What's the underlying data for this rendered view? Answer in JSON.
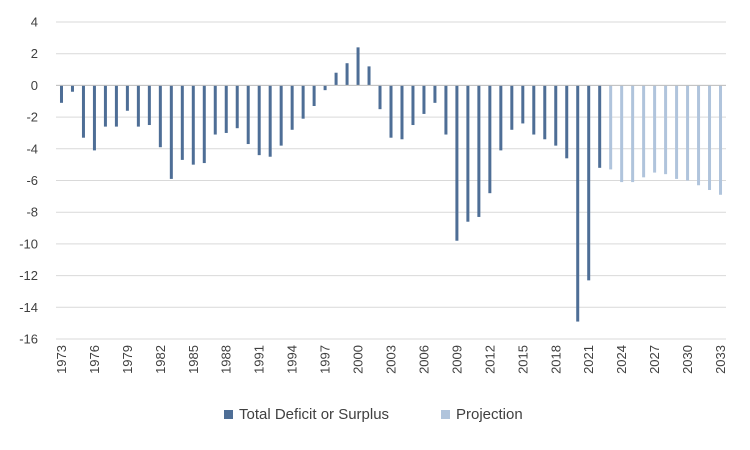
{
  "chart_data": {
    "type": "bar",
    "title": "",
    "xlabel": "",
    "ylabel": "",
    "ylim": [
      -16,
      4
    ],
    "y_ticks": [
      4,
      2,
      0,
      -2,
      -4,
      -6,
      -8,
      -10,
      -12,
      -14,
      -16
    ],
    "x_tick_labels": [
      "1973",
      "1976",
      "1979",
      "1982",
      "1985",
      "1988",
      "1991",
      "1994",
      "1997",
      "2000",
      "2003",
      "2006",
      "2009",
      "2012",
      "2015",
      "2018",
      "2021",
      "2024",
      "2027",
      "2030",
      "2033"
    ],
    "grid": true,
    "legend": "bottom",
    "series": [
      {
        "name": "Total Deficit or Surplus",
        "color": "#4e6e96",
        "x": [
          1973,
          1974,
          1975,
          1976,
          1977,
          1978,
          1979,
          1980,
          1981,
          1982,
          1983,
          1984,
          1985,
          1986,
          1987,
          1988,
          1989,
          1990,
          1991,
          1992,
          1993,
          1994,
          1995,
          1996,
          1997,
          1998,
          1999,
          2000,
          2001,
          2002,
          2003,
          2004,
          2005,
          2006,
          2007,
          2008,
          2009,
          2010,
          2011,
          2012,
          2013,
          2014,
          2015,
          2016,
          2017,
          2018,
          2019,
          2020,
          2021,
          2022
        ],
        "values": [
          -1.1,
          -0.4,
          -3.3,
          -4.1,
          -2.6,
          -2.6,
          -1.6,
          -2.6,
          -2.5,
          -3.9,
          -5.9,
          -4.7,
          -5.0,
          -4.9,
          -3.1,
          -3.0,
          -2.7,
          -3.7,
          -4.4,
          -4.5,
          -3.8,
          -2.8,
          -2.1,
          -1.3,
          -0.3,
          0.8,
          1.4,
          2.4,
          1.2,
          -1.5,
          -3.3,
          -3.4,
          -2.5,
          -1.8,
          -1.1,
          -3.1,
          -9.8,
          -8.6,
          -8.3,
          -6.8,
          -4.1,
          -2.8,
          -2.4,
          -3.1,
          -3.4,
          -3.8,
          -4.6,
          -14.9,
          -12.3,
          -5.2
        ]
      },
      {
        "name": "Projection",
        "color": "#b0c4dc",
        "x": [
          2023,
          2024,
          2025,
          2026,
          2027,
          2028,
          2029,
          2030,
          2031,
          2032,
          2033
        ],
        "values": [
          -5.3,
          -6.1,
          -6.1,
          -5.8,
          -5.5,
          -5.6,
          -5.9,
          -6.0,
          -6.3,
          -6.6,
          -6.9
        ]
      }
    ]
  }
}
